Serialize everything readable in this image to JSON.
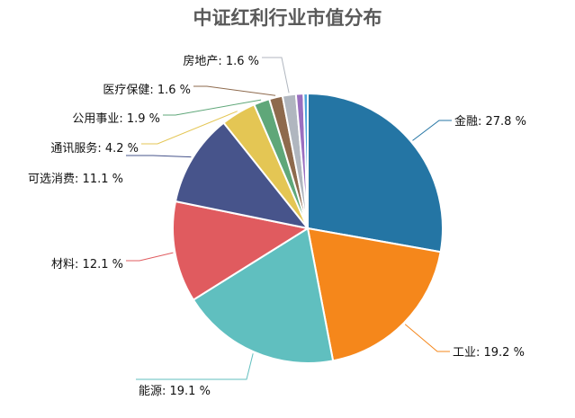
{
  "chart_data": {
    "type": "pie",
    "title": "中证红利行业市值分布",
    "slices": [
      {
        "label": "金融",
        "value": 27.8,
        "text": "金融: 27.8 %",
        "color": "#2475a4"
      },
      {
        "label": "工业",
        "value": 19.2,
        "text": "工业: 19.2 %",
        "color": "#f5871b"
      },
      {
        "label": "能源",
        "value": 19.1,
        "text": "能源: 19.1 %",
        "color": "#60bfbf"
      },
      {
        "label": "材料",
        "value": 12.1,
        "text": "材料: 12.1 %",
        "color": "#e05b5f"
      },
      {
        "label": "可选消费",
        "value": 11.1,
        "text": "可选消费: 11.1 %",
        "color": "#47548b"
      },
      {
        "label": "通讯服务",
        "value": 4.2,
        "text": "通讯服务: 4.2 %",
        "color": "#e4c654"
      },
      {
        "label": "公用事业",
        "value": 1.9,
        "text": "公用事业: 1.9 %",
        "color": "#5fa779"
      },
      {
        "label": "医疗保健",
        "value": 1.6,
        "text": "医疗保健: 1.6 %",
        "color": "#8e6a4d"
      },
      {
        "label": "房地产",
        "value": 1.6,
        "text": "房地产: 1.6 %",
        "color": "#b0b6bf"
      },
      {
        "label": "",
        "value": 0.9,
        "text": "",
        "color": "#9a6fc0"
      },
      {
        "label": "",
        "value": 0.5,
        "text": "",
        "color": "#4ea4db"
      }
    ]
  }
}
